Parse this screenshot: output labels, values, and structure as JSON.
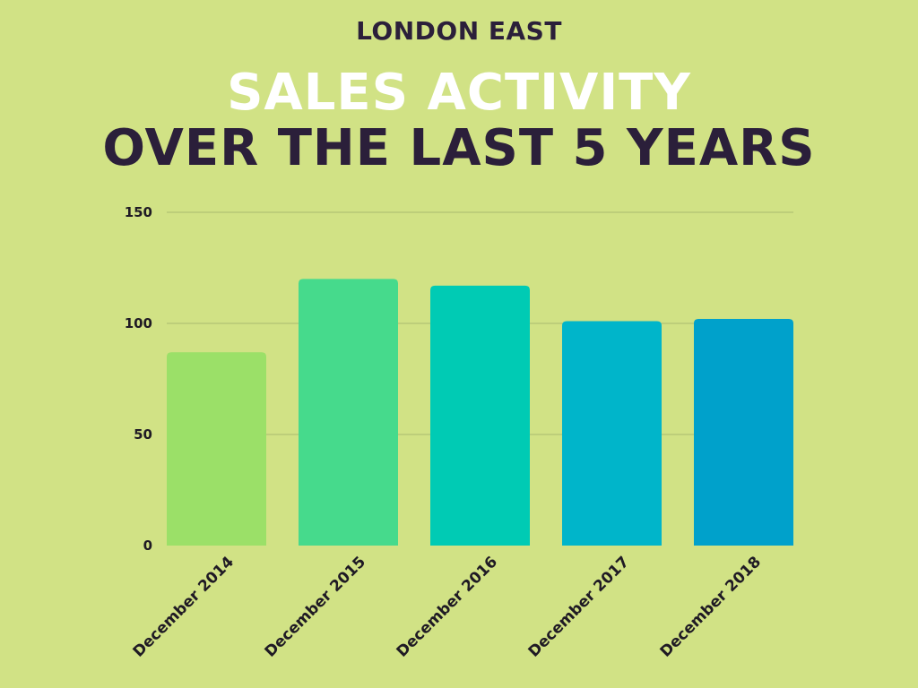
{
  "header": {
    "subtitle": "LONDON EAST",
    "title_line1": "SALES ACTIVITY",
    "title_line2": "OVER THE LAST 5 YEARS"
  },
  "chart_data": {
    "type": "bar",
    "title": "SALES ACTIVITY OVER THE LAST 5 YEARS",
    "subtitle": "LONDON EAST",
    "categories": [
      "December 2014",
      "December 2015",
      "December 2016",
      "December 2017",
      "December 2018"
    ],
    "values": [
      87,
      120,
      117,
      101,
      102
    ],
    "bar_colors": [
      "#9be068",
      "#46da8c",
      "#00cbb4",
      "#00b5ca",
      "#00a1cb"
    ],
    "ylim": [
      0,
      150
    ],
    "yticks": [
      0,
      50,
      100,
      150
    ],
    "grid": true,
    "legend": "none",
    "xlabel": "",
    "ylabel": ""
  },
  "colors": {
    "background": "#d1e285",
    "dark_text": "#2b1f3a",
    "light_text": "#ffffff",
    "gridline": "#a9bb70"
  }
}
